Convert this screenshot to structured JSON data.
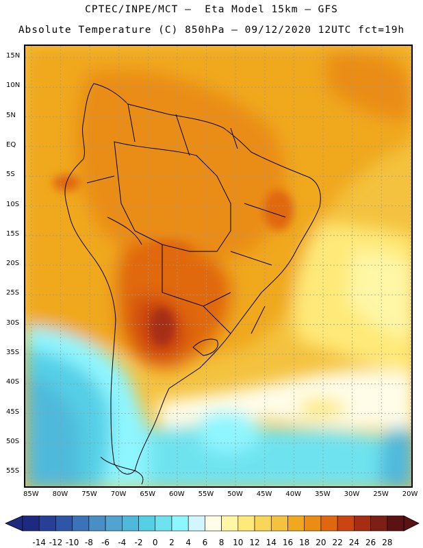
{
  "header": {
    "line1": "CPTEC/INPE/MCT –  Eta Model 15km – GFS",
    "line2": "Absolute Temperature (C) 850hPa – 09/12/2020 12UTC fct=19h"
  },
  "latitude_labels": [
    "15N",
    "10N",
    "5N",
    "EQ",
    "5S",
    "10S",
    "15S",
    "20S",
    "25S",
    "30S",
    "35S",
    "40S",
    "45S",
    "50S",
    "55S"
  ],
  "longitude_labels": [
    "85W",
    "80W",
    "75W",
    "70W",
    "65W",
    "60W",
    "55W",
    "50W",
    "45W",
    "40W",
    "35W",
    "30W",
    "25W",
    "20W"
  ],
  "legend": {
    "tick_labels": [
      "-14",
      "-12",
      "-10",
      "-8",
      "-6",
      "-4",
      "-2",
      "0",
      "2",
      "4",
      "6",
      "8",
      "10",
      "12",
      "14",
      "16",
      "18",
      "20",
      "22",
      "24",
      "26",
      "28"
    ],
    "colors": [
      "#1e2a80",
      "#273f94",
      "#2e56a6",
      "#3b73b9",
      "#4a8ec6",
      "#52a3cf",
      "#4fb9dc",
      "#55cfe6",
      "#6ee3ef",
      "#8ef6ff",
      "#d2f6ff",
      "#fffde8",
      "#fff6a6",
      "#ffe978",
      "#f9d65a",
      "#f4c23e",
      "#f0a81e",
      "#ea8d12",
      "#e06710",
      "#cc4411",
      "#a52d14",
      "#7c1f14",
      "#5b1212"
    ]
  }
}
